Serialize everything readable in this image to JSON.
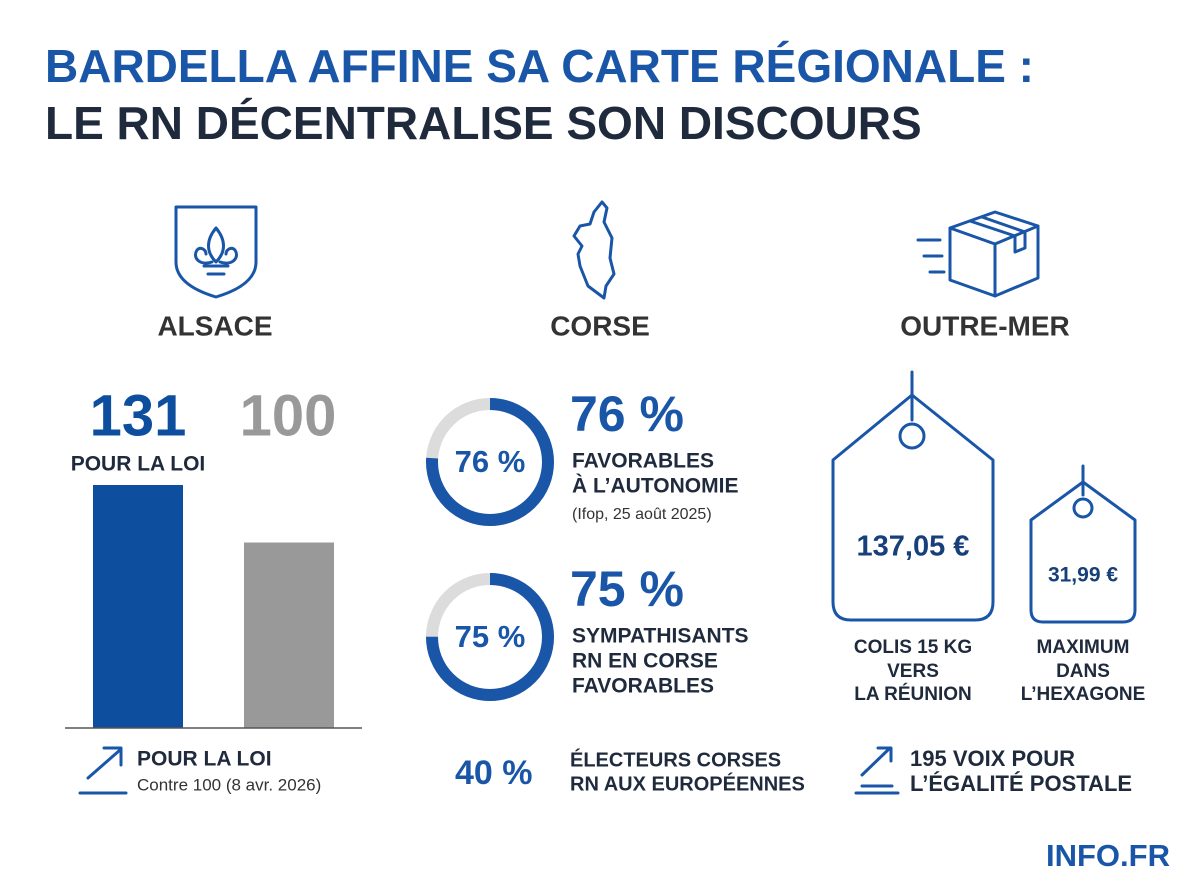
{
  "title": {
    "line1": "BARDELLA AFFINE SA CARTE RÉGIONALE :",
    "line2": "LE RN DÉCENTRALISE SON DISCOURS"
  },
  "alsace": {
    "heading": "ALSACE",
    "bars": [
      {
        "value": 131,
        "label": "POUR LA LOI",
        "color": "#0d4f9e"
      },
      {
        "value": 100,
        "color": "#999999"
      }
    ],
    "footer": {
      "title": "POUR LA LOI",
      "note": "Contre 100 (8 avr. 2026)"
    }
  },
  "corse": {
    "heading": "CORSE",
    "donuts": [
      {
        "value": 76,
        "value_label": "76 %",
        "lines": [
          "FAVORABLES",
          "À L’AUTONOMIE"
        ],
        "note": "(Ifop, 25 août 2025)"
      },
      {
        "value": 75,
        "value_label": "75 %",
        "lines": [
          "SYMPATHISANTS",
          "RN EN CORSE",
          "FAVORABLES"
        ]
      }
    ],
    "footer": {
      "stat": "40 %",
      "lines": [
        "ÉLECTEURS CORSES",
        "RN AUX EUROPÉENNES"
      ]
    }
  },
  "outre_mer": {
    "heading": "OUTRE-MER",
    "tags": [
      {
        "price": "137,05 €",
        "lines": [
          "COLIS 15 KG",
          "VERS",
          "LA RÉUNION"
        ]
      },
      {
        "price": "31,99 €",
        "lines": [
          "MAXIMUM",
          "DANS",
          "L’HEXAGONE"
        ]
      }
    ],
    "footer": {
      "lines": [
        "195 VOIX POUR",
        "L’ÉGALITÉ POSTALE"
      ]
    }
  },
  "brand": "INFO.FR"
}
